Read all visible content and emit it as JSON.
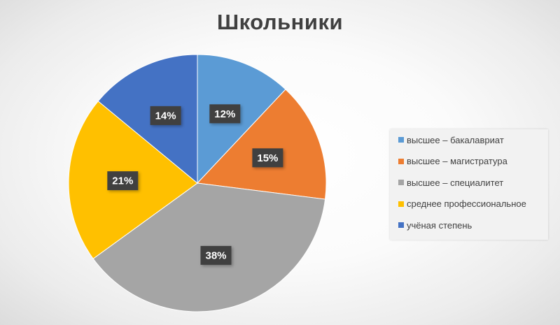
{
  "chart_data": {
    "type": "pie",
    "title": "Школьники",
    "slices": [
      {
        "label": "высшее – бакалавриат",
        "value": 12,
        "display": "12%",
        "color": "#5B9BD5"
      },
      {
        "label": "высшее – магистратура",
        "value": 15,
        "display": "15%",
        "color": "#ED7D31"
      },
      {
        "label": "высшее – специалитет",
        "value": 38,
        "display": "38%",
        "color": "#A5A5A5"
      },
      {
        "label": "среднее профессиональное",
        "value": 21,
        "display": "21%",
        "color": "#FFC000"
      },
      {
        "label": "учёная степень",
        "value": 14,
        "display": "14%",
        "color": "#4472C4"
      }
    ],
    "legend_position": "right",
    "start_angle_deg": 0,
    "direction": "clockwise"
  }
}
